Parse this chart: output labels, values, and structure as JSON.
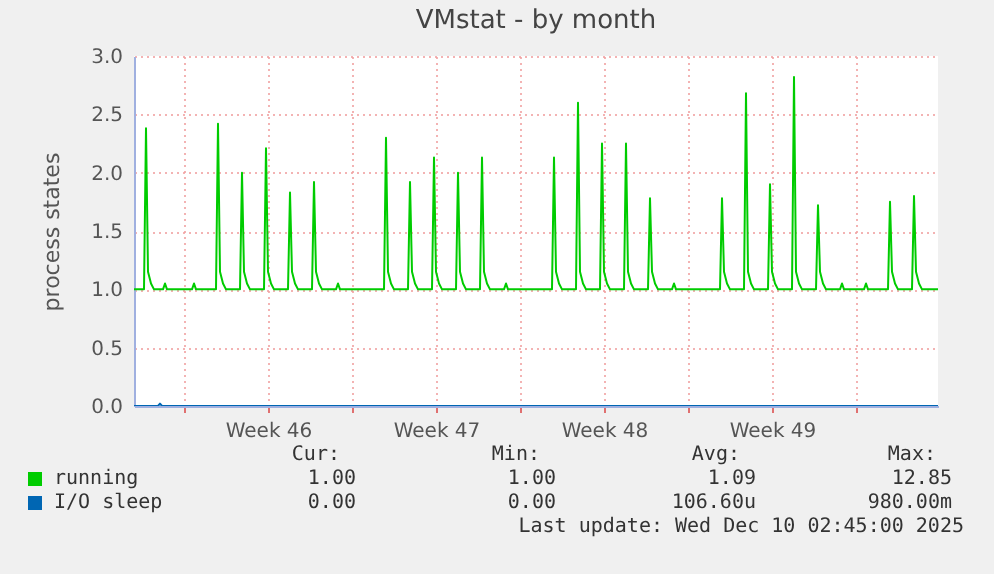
{
  "chart_data": {
    "type": "line",
    "title": "VMstat - by month",
    "ylabel": "process states",
    "xlim": [
      "2025-11-07T22:00",
      "2025-12-11T10:00"
    ],
    "ylim": [
      0,
      3
    ],
    "xticks": [
      {
        "value": "2025-11-10",
        "label": null
      },
      {
        "value": "2025-11-13T12:00",
        "label": "Week 46"
      },
      {
        "value": "2025-11-17",
        "label": null
      },
      {
        "value": "2025-11-20T12:00",
        "label": "Week 47"
      },
      {
        "value": "2025-11-24",
        "label": null
      },
      {
        "value": "2025-11-27T12:00",
        "label": "Week 48"
      },
      {
        "value": "2025-12-01",
        "label": null
      },
      {
        "value": "2025-12-04T12:00",
        "label": "Week 49"
      },
      {
        "value": "2025-12-08",
        "label": null
      }
    ],
    "yticks": [
      {
        "value": 0,
        "label": "0.0"
      },
      {
        "value": 0.5,
        "label": "0.5"
      },
      {
        "value": 1,
        "label": "1.0"
      },
      {
        "value": 1.5,
        "label": "1.5"
      },
      {
        "value": 2,
        "label": "2.0"
      },
      {
        "value": 2.5,
        "label": "2.5"
      },
      {
        "value": 3,
        "label": "3.0"
      }
    ],
    "grid": true,
    "legend": "bottom left",
    "series": [
      {
        "name": "running",
        "color": "#00cc00",
        "x": [
          "2025-11-07T22:00",
          "2025-11-08T08:00",
          "2025-11-08T10:00",
          "2025-11-08T12:00",
          "2025-11-08T15:00",
          "2025-11-08T18:00",
          "2025-11-09T03:00",
          "2025-11-09T05:00",
          "2025-11-09T07:00",
          "2025-11-10T08:00",
          "2025-11-10T10:00",
          "2025-11-10T12:00",
          "2025-11-11T08:00",
          "2025-11-11T10:00",
          "2025-11-11T12:00",
          "2025-11-11T15:00",
          "2025-11-11T18:00",
          "2025-11-12T08:00",
          "2025-11-12T10:00",
          "2025-11-12T12:00",
          "2025-11-12T15:00",
          "2025-11-12T18:00",
          "2025-11-13T08:00",
          "2025-11-13T10:00",
          "2025-11-13T12:00",
          "2025-11-13T15:00",
          "2025-11-13T18:00",
          "2025-11-14T08:00",
          "2025-11-14T10:00",
          "2025-11-14T12:00",
          "2025-11-14T15:00",
          "2025-11-14T18:00",
          "2025-11-15T08:00",
          "2025-11-15T10:00",
          "2025-11-15T12:00",
          "2025-11-15T15:00",
          "2025-11-15T18:00",
          "2025-11-16T08:00",
          "2025-11-16T10:00",
          "2025-11-16T12:00",
          "2025-11-18T08:00",
          "2025-11-18T10:00",
          "2025-11-18T12:00",
          "2025-11-18T15:00",
          "2025-11-18T18:00",
          "2025-11-19T08:00",
          "2025-11-19T10:00",
          "2025-11-19T12:00",
          "2025-11-19T15:00",
          "2025-11-19T18:00",
          "2025-11-20T08:00",
          "2025-11-20T10:00",
          "2025-11-20T12:00",
          "2025-11-20T15:00",
          "2025-11-20T18:00",
          "2025-11-21T08:00",
          "2025-11-21T10:00",
          "2025-11-21T12:00",
          "2025-11-21T15:00",
          "2025-11-21T18:00",
          "2025-11-22T08:00",
          "2025-11-22T10:00",
          "2025-11-22T12:00",
          "2025-11-22T15:00",
          "2025-11-22T18:00",
          "2025-11-23T08:00",
          "2025-11-23T10:00",
          "2025-11-23T12:00",
          "2025-11-25T08:00",
          "2025-11-25T10:00",
          "2025-11-25T12:00",
          "2025-11-25T15:00",
          "2025-11-25T18:00",
          "2025-11-26T08:00",
          "2025-11-26T10:00",
          "2025-11-26T12:00",
          "2025-11-26T15:00",
          "2025-11-26T18:00",
          "2025-11-27T08:00",
          "2025-11-27T10:00",
          "2025-11-27T12:00",
          "2025-11-27T15:00",
          "2025-11-27T18:00",
          "2025-11-28T08:00",
          "2025-11-28T10:00",
          "2025-11-28T12:00",
          "2025-11-28T15:00",
          "2025-11-28T18:00",
          "2025-11-29T08:00",
          "2025-11-29T10:00",
          "2025-11-29T12:00",
          "2025-11-29T15:00",
          "2025-11-29T18:00",
          "2025-11-30T08:00",
          "2025-11-30T10:00",
          "2025-11-30T12:00",
          "2025-12-02T08:00",
          "2025-12-02T10:00",
          "2025-12-02T12:00",
          "2025-12-02T15:00",
          "2025-12-02T18:00",
          "2025-12-03T08:00",
          "2025-12-03T10:00",
          "2025-12-03T12:00",
          "2025-12-03T15:00",
          "2025-12-03T18:00",
          "2025-12-04T08:00",
          "2025-12-04T10:00",
          "2025-12-04T12:00",
          "2025-12-04T15:00",
          "2025-12-04T18:00",
          "2025-12-05T08:00",
          "2025-12-05T10:00",
          "2025-12-05T12:00",
          "2025-12-05T15:00",
          "2025-12-05T18:00",
          "2025-12-06T08:00",
          "2025-12-06T10:00",
          "2025-12-06T12:00",
          "2025-12-06T15:00",
          "2025-12-06T18:00",
          "2025-12-07T08:00",
          "2025-12-07T10:00",
          "2025-12-07T12:00",
          "2025-12-08T08:00",
          "2025-12-08T10:00",
          "2025-12-08T12:00",
          "2025-12-09T08:00",
          "2025-12-09T10:00",
          "2025-12-09T12:00",
          "2025-12-09T15:00",
          "2025-12-09T18:00",
          "2025-12-10T08:00",
          "2025-12-10T10:00",
          "2025-12-10T12:00",
          "2025-12-10T15:00",
          "2025-12-10T18:00",
          "2025-12-11T10:00"
        ],
        "values": [
          1,
          1,
          2.38,
          1.15,
          1.05,
          1,
          1,
          1.05,
          1,
          1,
          1.05,
          1,
          1,
          2.42,
          1.15,
          1.05,
          1,
          1,
          2.0,
          1.15,
          1.05,
          1,
          1,
          2.21,
          1.15,
          1.05,
          1,
          1,
          1.83,
          1.15,
          1.05,
          1,
          1,
          1.92,
          1.15,
          1.05,
          1,
          1,
          1.05,
          1,
          1,
          2.3,
          1.15,
          1.05,
          1,
          1,
          1.92,
          1.15,
          1.05,
          1,
          1,
          2.13,
          1.15,
          1.05,
          1,
          1,
          2.0,
          1.15,
          1.05,
          1,
          1,
          2.13,
          1.15,
          1.05,
          1,
          1,
          1.05,
          1,
          1,
          2.13,
          1.15,
          1.05,
          1,
          1,
          2.6,
          1.15,
          1.05,
          1,
          1,
          2.25,
          1.15,
          1.05,
          1,
          1,
          2.25,
          1.15,
          1.05,
          1,
          1,
          1.78,
          1.15,
          1.05,
          1,
          1,
          1.05,
          1,
          1,
          1.78,
          1.15,
          1.05,
          1,
          1,
          2.68,
          1.15,
          1.05,
          1,
          1,
          1.9,
          1.15,
          1.05,
          1,
          1,
          2.82,
          1.15,
          1.05,
          1,
          1,
          1.72,
          1.15,
          1.05,
          1,
          1,
          1.05,
          1,
          1,
          1.05,
          1,
          1,
          1.75,
          1.15,
          1.05,
          1,
          1,
          1.8,
          1.15,
          1.05,
          1,
          1
        ]
      },
      {
        "name": "I/O sleep",
        "color": "#0066b3",
        "x": [
          "2025-11-07T22:00",
          "2025-11-08T22:00",
          "2025-11-09T00:00",
          "2025-11-09T02:00",
          "2025-12-11T10:00"
        ],
        "values": [
          0,
          0,
          0.02,
          0,
          0
        ]
      }
    ],
    "annotations": [
      "Cur:",
      "Min:",
      "Avg:",
      "Max:",
      "1.00",
      "1.00",
      "1.09",
      "12.85",
      "0.00",
      "0.00",
      "106.60u",
      "980.00m",
      "Last update: Wed Dec 10 02:45:00 2025"
    ]
  }
}
